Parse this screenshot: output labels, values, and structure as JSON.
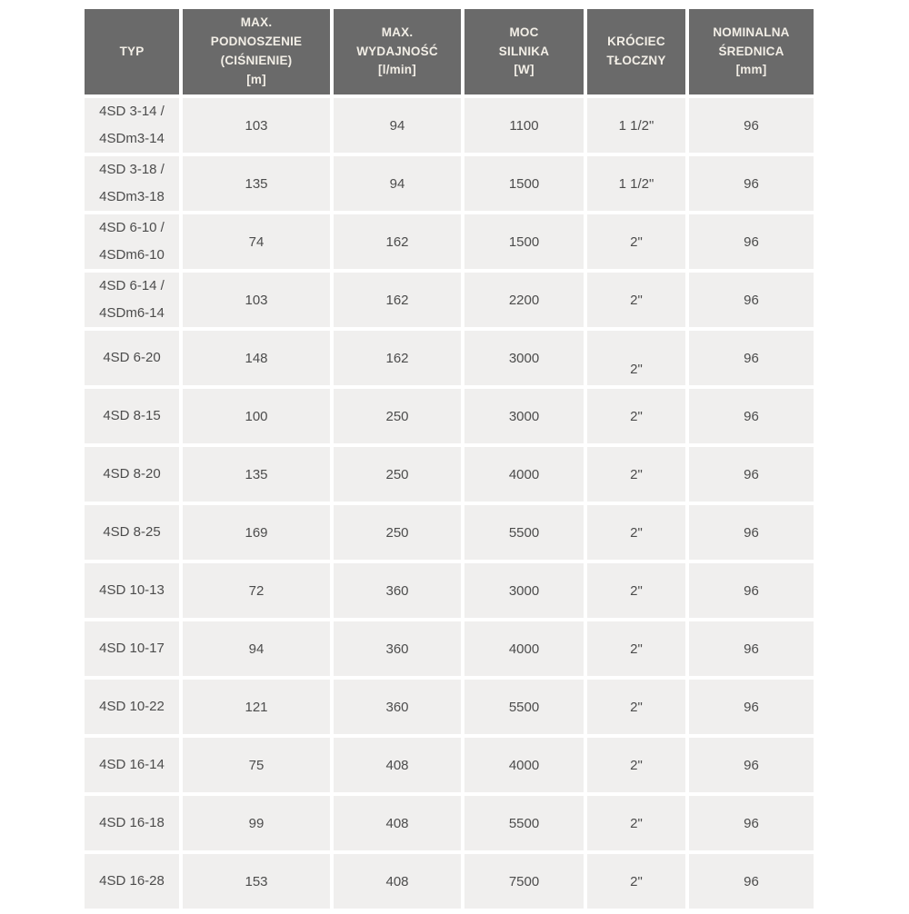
{
  "theme": {
    "header_bg": "#6a6a6a",
    "header_text": "#f2eee6",
    "cell_bg": "#f0efee",
    "cell_text": "#4c4c4c",
    "page_bg": "#ffffff"
  },
  "table": {
    "columns": [
      {
        "id": "typ",
        "lines": [
          "TYP"
        ]
      },
      {
        "id": "max-podnoszenie",
        "lines": [
          "MAX.",
          "PODNOSZENIE",
          "(CIŚNIENIE)",
          "[m]"
        ]
      },
      {
        "id": "max-wydajnosc",
        "lines": [
          "MAX.",
          "WYDAJNOŚĆ",
          "[l/min]"
        ]
      },
      {
        "id": "moc-silnika",
        "lines": [
          "MOC",
          "SILNIKA",
          "[W]"
        ]
      },
      {
        "id": "krociec-tloczny",
        "lines": [
          "KRÓCIEC",
          "TŁOCZNY"
        ]
      },
      {
        "id": "nominalna-srednica",
        "lines": [
          "NOMINALNA",
          "ŚREDNICA",
          "[mm]"
        ]
      }
    ],
    "rows": [
      {
        "typ": [
          "4SD 3-14 /",
          "4SDm3-14"
        ],
        "values": [
          "103",
          "94",
          "1100",
          "1 1/2\"",
          "96"
        ]
      },
      {
        "typ": [
          "4SD 3-18 /",
          "4SDm3-18"
        ],
        "values": [
          "135",
          "94",
          "1500",
          "1 1/2\"",
          "96"
        ]
      },
      {
        "typ": [
          "4SD 6-10 /",
          "4SDm6-10"
        ],
        "values": [
          "74",
          "162",
          "1500",
          "2\"",
          "96"
        ]
      },
      {
        "typ": [
          "4SD 6-14 /",
          "4SDm6-14"
        ],
        "values": [
          "103",
          "162",
          "2200",
          "2\"",
          "96"
        ]
      },
      {
        "typ": [
          "4SD 6-20"
        ],
        "values": [
          "148",
          "162",
          "3000",
          "2\"",
          "96"
        ]
      },
      {
        "typ": [
          "4SD 8-15"
        ],
        "values": [
          "100",
          "250",
          "3000",
          "2\"",
          "96"
        ]
      },
      {
        "typ": [
          "4SD 8-20"
        ],
        "values": [
          "135",
          "250",
          "4000",
          "2\"",
          "96"
        ]
      },
      {
        "typ": [
          "4SD 8-25"
        ],
        "values": [
          "169",
          "250",
          "5500",
          "2\"",
          "96"
        ]
      },
      {
        "typ": [
          "4SD 10-13"
        ],
        "values": [
          "72",
          "360",
          "3000",
          "2\"",
          "96"
        ]
      },
      {
        "typ": [
          "4SD 10-17"
        ],
        "values": [
          "94",
          "360",
          "4000",
          "2\"",
          "96"
        ]
      },
      {
        "typ": [
          "4SD 10-22"
        ],
        "values": [
          "121",
          "360",
          "5500",
          "2\"",
          "96"
        ]
      },
      {
        "typ": [
          "4SD 16-14"
        ],
        "values": [
          "75",
          "408",
          "4000",
          "2\"",
          "96"
        ]
      },
      {
        "typ": [
          "4SD 16-18"
        ],
        "values": [
          "99",
          "408",
          "5500",
          "2\"",
          "96"
        ]
      },
      {
        "typ": [
          "4SD 16-28"
        ],
        "values": [
          "153",
          "408",
          "7500",
          "2\"",
          "96"
        ]
      }
    ]
  },
  "chart_data": {
    "type": "table",
    "title": "",
    "columns": [
      "TYP",
      "MAX. PODNOSZENIE (CIŚNIENIE) [m]",
      "MAX. WYDAJNOŚĆ [l/min]",
      "MOC SILNIKA [W]",
      "KRÓCIEC TŁOCZNY",
      "NOMINALNA ŚREDNICA [mm]"
    ],
    "rows": [
      [
        "4SD 3-14 / 4SDm3-14",
        103,
        94,
        1100,
        "1 1/2\"",
        96
      ],
      [
        "4SD 3-18 / 4SDm3-18",
        135,
        94,
        1500,
        "1 1/2\"",
        96
      ],
      [
        "4SD 6-10 / 4SDm6-10",
        74,
        162,
        1500,
        "2\"",
        96
      ],
      [
        "4SD 6-14 / 4SDm6-14",
        103,
        162,
        2200,
        "2\"",
        96
      ],
      [
        "4SD 6-20",
        148,
        162,
        3000,
        "2\"",
        96
      ],
      [
        "4SD 8-15",
        100,
        250,
        3000,
        "2\"",
        96
      ],
      [
        "4SD 8-20",
        135,
        250,
        4000,
        "2\"",
        96
      ],
      [
        "4SD 8-25",
        169,
        250,
        5500,
        "2\"",
        96
      ],
      [
        "4SD 10-13",
        72,
        360,
        3000,
        "2\"",
        96
      ],
      [
        "4SD 10-17",
        94,
        360,
        4000,
        "2\"",
        96
      ],
      [
        "4SD 10-22",
        121,
        360,
        5500,
        "2\"",
        96
      ],
      [
        "4SD 16-14",
        75,
        408,
        4000,
        "2\"",
        96
      ],
      [
        "4SD 16-18",
        99,
        408,
        5500,
        "2\"",
        96
      ],
      [
        "4SD 16-28",
        153,
        408,
        7500,
        "2\"",
        96
      ]
    ]
  }
}
